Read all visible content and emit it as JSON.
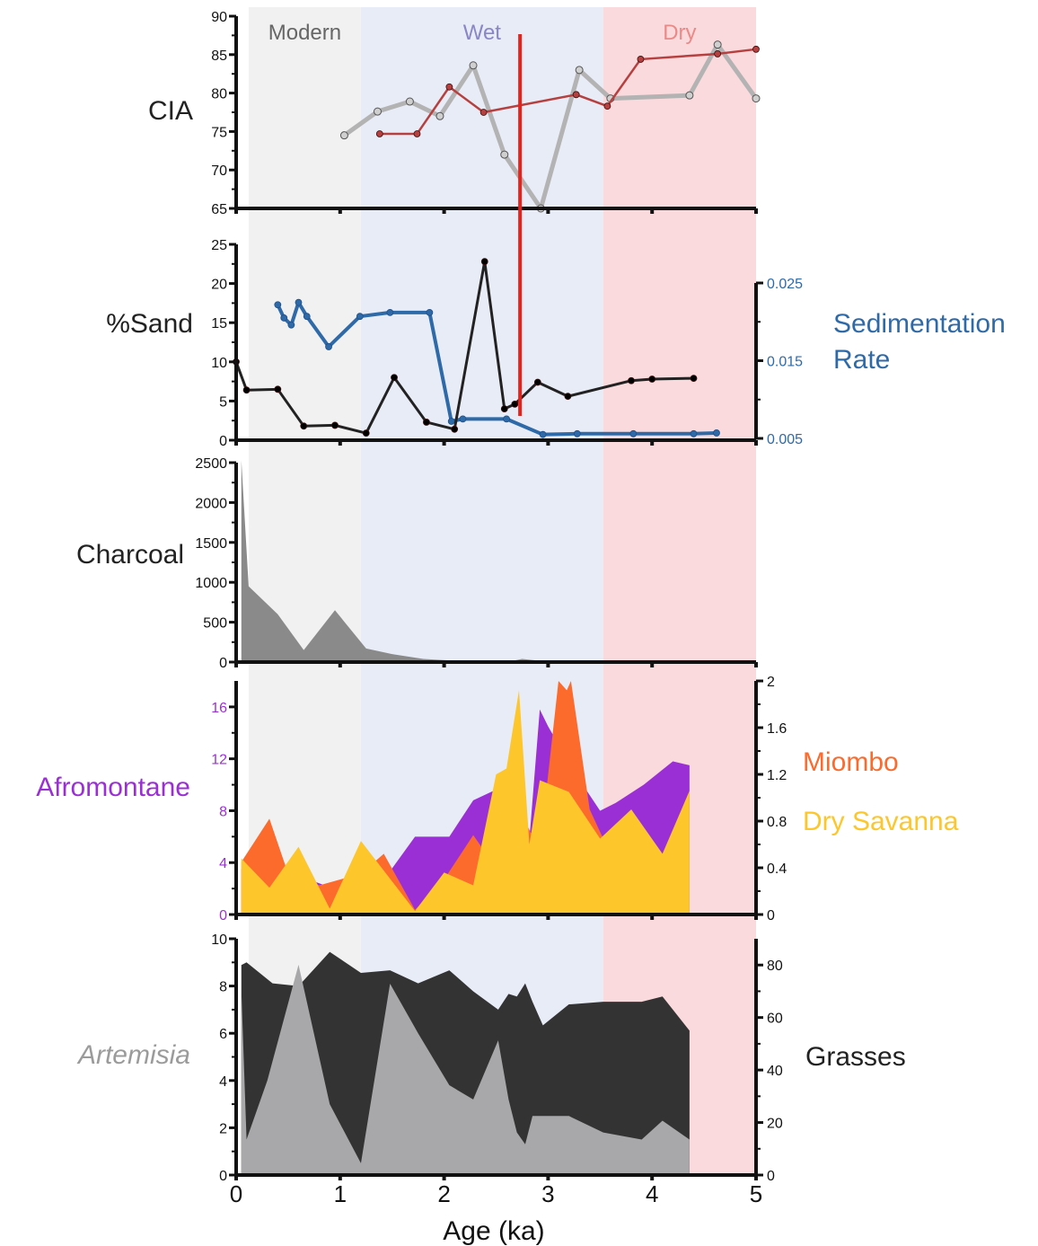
{
  "chart_data": {
    "type": "line",
    "xlabel": "Age (ka)",
    "x_ticks": [
      "0",
      "1",
      "2",
      "3",
      "4",
      "5"
    ],
    "xlim": [
      0,
      5
    ],
    "zones": [
      {
        "label": "Modern",
        "from": 0.12,
        "to": 1.2,
        "color": "#f1f1f1",
        "text_color": "#666666"
      },
      {
        "label": "Wet",
        "from": 1.2,
        "to": 3.53,
        "color": "#e8ecf7",
        "text_color": "#8a86c6"
      },
      {
        "label": "Dry",
        "from": 3.53,
        "to": 5.0,
        "color": "#fadadc",
        "text_color": "#ea8a88"
      }
    ],
    "event_line": {
      "x": 2.73,
      "color": "#e8221a"
    },
    "panels": [
      {
        "id": "cia",
        "left_label": "CIA",
        "left_label_color": "#222222",
        "left_ticks": [
          "65",
          "70",
          "75",
          "80",
          "85",
          "90"
        ],
        "left_range": [
          65,
          90
        ],
        "series": [
          {
            "kind": "line",
            "color": "#b3b3b3",
            "width": 5,
            "x": [
              1.04,
              1.36,
              1.67,
              1.96,
              2.28,
              2.58,
              2.93,
              3.3,
              3.6,
              4.36,
              4.63,
              5.0
            ],
            "y": [
              74.5,
              77.6,
              78.9,
              77.0,
              83.6,
              72.0,
              65.0,
              83.0,
              79.3,
              79.7,
              86.3,
              79.3
            ]
          },
          {
            "kind": "line",
            "color": "#b6403f",
            "width": 2.5,
            "x": [
              1.38,
              1.74,
              2.05,
              2.38,
              3.27,
              3.57,
              3.89,
              4.63,
              5.0
            ],
            "y": [
              74.7,
              74.7,
              80.8,
              77.5,
              79.8,
              78.3,
              84.4,
              85.1,
              85.7
            ]
          }
        ]
      },
      {
        "id": "sand",
        "left_label": "%Sand",
        "left_label_color": "#222222",
        "right_label": [
          "Sedimentation",
          "Rate"
        ],
        "right_label_color": "#2f6aa8",
        "left_ticks": [
          "0",
          "5",
          "10",
          "15",
          "20",
          "25"
        ],
        "left_range": [
          0,
          25
        ],
        "right_ticks": [
          "0.005",
          "0.015",
          "0.025"
        ],
        "right_range": [
          0.005,
          0.025
        ],
        "right_tick_color": "#2f6aa8",
        "series": [
          {
            "kind": "line",
            "axis": "right",
            "color": "#2f6aa8",
            "width": 4,
            "x": [
              0.4,
              0.46,
              0.53,
              0.6,
              0.68,
              0.89,
              1.19,
              1.48,
              1.86,
              2.07,
              2.18,
              2.6,
              2.95,
              3.28,
              3.82,
              4.4,
              4.62
            ],
            "y": [
              0.0222,
              0.0205,
              0.0196,
              0.0225,
              0.0207,
              0.0168,
              0.0207,
              0.0212,
              0.0212,
              0.0072,
              0.0075,
              0.0075,
              0.0055,
              0.0056,
              0.0056,
              0.0056,
              0.0057
            ]
          },
          {
            "kind": "line",
            "axis": "left",
            "color": "#222222",
            "width": 3,
            "x": [
              0.0,
              0.1,
              0.4,
              0.65,
              0.95,
              1.25,
              1.52,
              1.83,
              2.1,
              2.39,
              2.58,
              2.68,
              2.9,
              3.19,
              3.8,
              4.0,
              4.4
            ],
            "y": [
              10.0,
              6.4,
              6.5,
              1.8,
              1.9,
              0.9,
              8.0,
              2.3,
              1.4,
              22.8,
              4.0,
              4.6,
              7.4,
              5.6,
              7.6,
              7.8,
              7.9
            ]
          }
        ]
      },
      {
        "id": "charcoal",
        "left_label": "Charcoal",
        "left_label_color": "#222222",
        "left_ticks": [
          "0",
          "500",
          "1000",
          "1500",
          "2000",
          "2500"
        ],
        "left_range": [
          0,
          2500
        ],
        "series": [
          {
            "kind": "area",
            "color": "#8a8a8a",
            "x": [
              0.05,
              0.12,
              0.4,
              0.65,
              0.95,
              1.25,
              1.5,
              1.8,
              2.2,
              2.6,
              2.75,
              3.0,
              3.53
            ],
            "y": [
              2530,
              950,
              600,
              150,
              650,
              170,
              100,
              40,
              10,
              0,
              40,
              5,
              0
            ]
          }
        ]
      },
      {
        "id": "afromontane",
        "left_label": "Afromontane",
        "left_label_color": "#9b2fd6",
        "left_ticks": [
          "0",
          "4",
          "8",
          "12",
          "16"
        ],
        "left_range": [
          0,
          18
        ],
        "left_tick_color": "#9b2fd6",
        "right_ticks": [
          "0",
          "0.4",
          "0.8",
          "1.2",
          "1.6",
          "2"
        ],
        "right_range": [
          0,
          2
        ],
        "right_labels": [
          {
            "text": "Miombo",
            "color": "#fc6a2c"
          },
          {
            "text": "Dry Savanna",
            "color": "#fdc62a"
          }
        ],
        "series": [
          {
            "kind": "area",
            "axis": "left",
            "color": "#9b2fd6",
            "x": [
              0.05,
              0.32,
              0.6,
              0.9,
              1.2,
              1.45,
              1.72,
              2.05,
              2.28,
              2.6,
              2.82,
              2.92,
              3.0,
              3.25,
              3.5,
              3.65,
              3.92,
              4.2,
              4.36
            ],
            "y": [
              3.5,
              3.0,
              3.0,
              2.1,
              3.0,
              3.0,
              6.0,
              6.0,
              8.8,
              10.0,
              5.8,
              15.8,
              14.5,
              11.0,
              8.0,
              8.6,
              10.0,
              11.8,
              11.5
            ]
          },
          {
            "kind": "area",
            "axis": "right",
            "color": "#fc6a2c",
            "x": [
              0.05,
              0.32,
              0.5,
              0.8,
              1.2,
              1.42,
              1.72,
              2.0,
              2.28,
              2.5,
              2.72,
              2.92,
              3.1,
              3.18,
              3.22,
              3.4,
              3.53
            ],
            "y": [
              0.45,
              0.82,
              0.35,
              0.25,
              0.35,
              0.52,
              0.04,
              0.3,
              0.68,
              0.4,
              0.9,
              0.55,
              2.0,
              1.92,
              2.0,
              0.9,
              0.65
            ]
          },
          {
            "kind": "area",
            "axis": "right",
            "color": "#fdc62a",
            "x": [
              0.05,
              0.32,
              0.6,
              0.9,
              1.2,
              1.72,
              2.0,
              2.28,
              2.5,
              2.6,
              2.72,
              2.82,
              2.92,
              3.2,
              3.5,
              3.8,
              4.1,
              4.36
            ],
            "y": [
              0.48,
              0.23,
              0.58,
              0.05,
              0.63,
              0.03,
              0.36,
              0.25,
              1.2,
              1.25,
              1.92,
              0.6,
              1.15,
              1.05,
              0.65,
              0.9,
              0.52,
              1.06
            ]
          }
        ]
      },
      {
        "id": "grasses",
        "left_label": "Artemisia",
        "left_label_color": "#9b9b9b",
        "right_label": [
          "Grasses"
        ],
        "right_label_color": "#222222",
        "left_ticks": [
          "0",
          "2",
          "4",
          "6",
          "8",
          "10"
        ],
        "left_range": [
          0,
          10
        ],
        "right_ticks": [
          "0",
          "20",
          "40",
          "60",
          "80"
        ],
        "right_range": [
          0,
          90
        ],
        "series": [
          {
            "kind": "area",
            "axis": "right",
            "color": "#333333",
            "x": [
              0.05,
              0.1,
              0.35,
              0.6,
              0.9,
              1.2,
              1.48,
              1.75,
              2.05,
              2.28,
              2.52,
              2.62,
              2.7,
              2.78,
              2.85,
              2.95,
              3.2,
              3.53,
              3.9,
              4.1,
              4.36
            ],
            "y": [
              80,
              81,
              73,
              72,
              85,
              77,
              78,
              73,
              78,
              70,
              63,
              69,
              68,
              73,
              66,
              57,
              65,
              66,
              66,
              68,
              55
            ]
          },
          {
            "kind": "area",
            "axis": "left",
            "color": "#a8a8aa",
            "x": [
              0.05,
              0.1,
              0.3,
              0.6,
              0.9,
              1.2,
              1.48,
              1.75,
              2.05,
              2.28,
              2.52,
              2.62,
              2.7,
              2.78,
              2.85,
              2.95,
              3.2,
              3.53,
              3.9,
              4.1,
              4.36
            ],
            "y": [
              7.8,
              1.5,
              4.0,
              8.9,
              3.0,
              0.5,
              8.1,
              6.0,
              3.8,
              3.2,
              5.7,
              3.2,
              1.8,
              1.3,
              2.5,
              2.5,
              2.5,
              1.8,
              1.5,
              2.3,
              1.5
            ]
          }
        ]
      }
    ]
  }
}
